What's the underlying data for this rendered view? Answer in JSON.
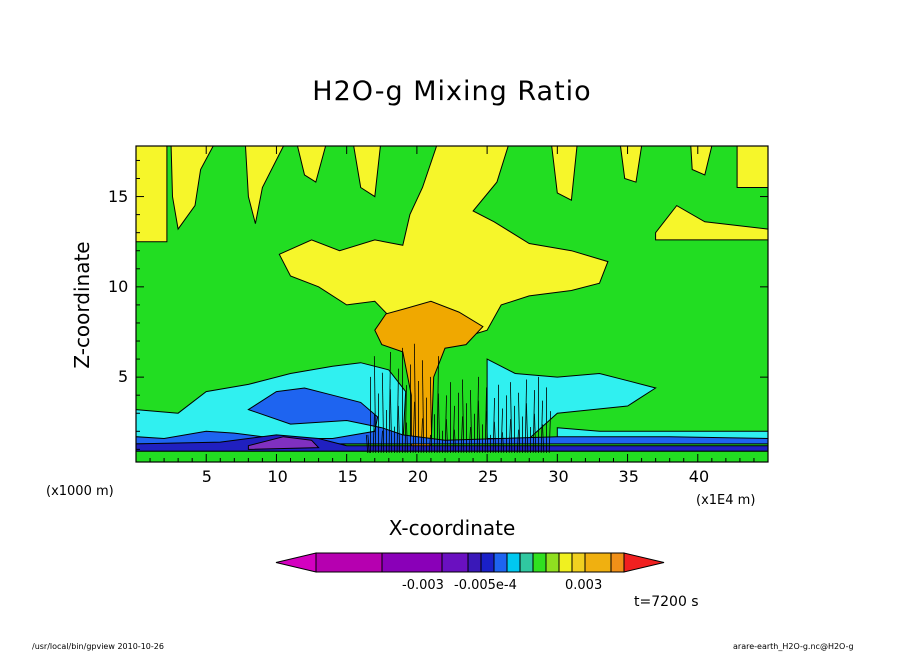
{
  "chart_data": {
    "type": "heatmap",
    "title": "H2O-g Mixing Ratio",
    "xlabel": "X-coordinate",
    "ylabel": "Z-coordinate",
    "x_unit_left": "(x1000 m)",
    "x_unit_right": "(x1E4 m)",
    "xlim": [
      0,
      45
    ],
    "ylim": [
      0.3,
      17.8
    ],
    "xticks": [
      "5",
      "10",
      "15",
      "20",
      "25",
      "30",
      "35",
      "40"
    ],
    "yticks": [
      "5",
      "10",
      "15"
    ],
    "grid": false,
    "colorbar": {
      "colors": [
        "#d400c0",
        "#b600b0",
        "#8a00b8",
        "#6a10c0",
        "#3a18b8",
        "#1a20c8",
        "#1e64f0",
        "#00c8f0",
        "#30c8a0",
        "#30e020",
        "#90e020",
        "#f0f020",
        "#f0d020",
        "#f0b010",
        "#f09018",
        "#f02020"
      ],
      "labels": [
        "-0.003",
        "-0.005e-4",
        "0.003"
      ]
    },
    "annotation": "t=7200 s",
    "levels_colors": {
      "background": "#22dd22",
      "upper": "#f6f62a",
      "high": "#f0a800",
      "mid": "#30f0f0",
      "low": "#1e64f0",
      "lowest": "#2020c0",
      "bottom": "#8030c0"
    }
  },
  "footer": {
    "left": "/usr/local/bin/gpview  2010-10-26",
    "right": "arare-earth_H2O-g.nc@H2O-g"
  }
}
